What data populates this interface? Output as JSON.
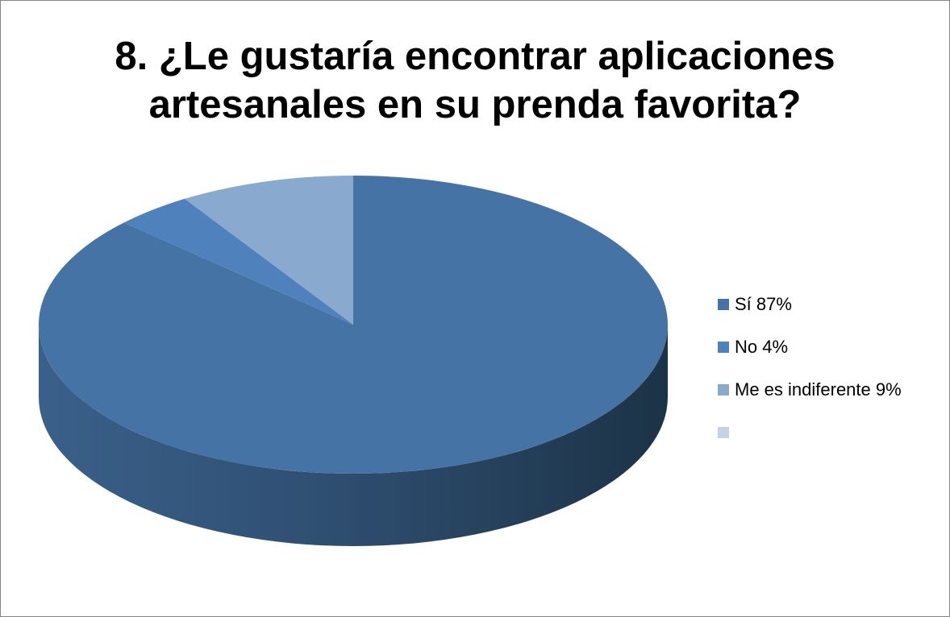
{
  "chart_data": {
    "type": "pie",
    "title_lines": [
      "8. ¿Le gustaría encontrar aplicaciones",
      "artesanales en su prenda favorita?"
    ],
    "categories": [
      "Sí",
      "No",
      "Me es indiferente",
      ""
    ],
    "values": [
      87,
      4,
      9,
      0
    ],
    "legend_labels": [
      "Sí 87%",
      "No 4%",
      "Me es indiferente 9%",
      ""
    ],
    "colors": [
      "#4673A6",
      "#4F81BD",
      "#8AA9CF",
      "#C4D2E6"
    ],
    "side_color": "#2F4F72",
    "legend_position": "right",
    "style": "3d"
  }
}
